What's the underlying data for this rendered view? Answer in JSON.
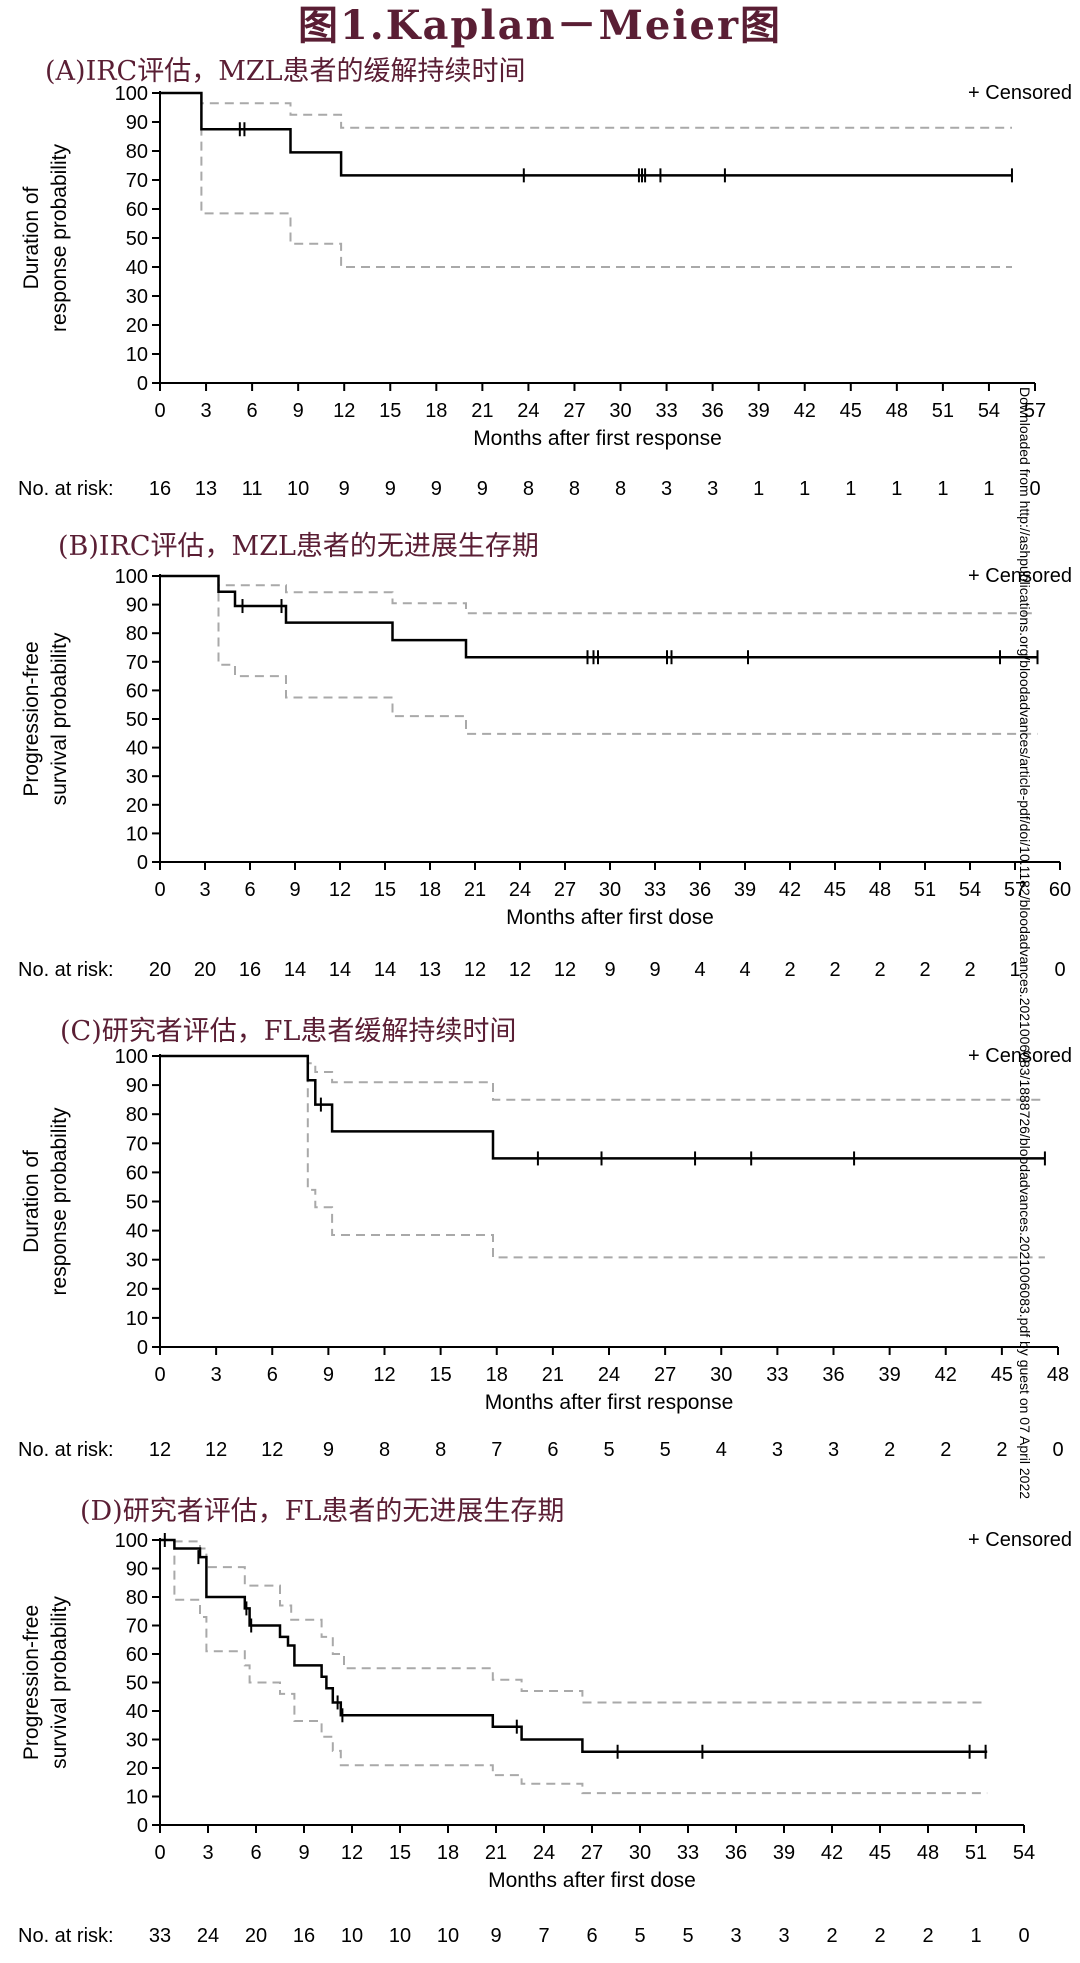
{
  "figure_title": "图1.Kaplan－Meier图",
  "censored_legend": "+ Censored",
  "risk_label": "No. at risk:",
  "watermark": "Downloaded from http://ashpublications.org/bloodadvances/article-pdf/doi/10.1182/bloodadvances.2021006083/1888726/bloodadvances.2021006083.pdf by guest on 07 April 2022",
  "colors": {
    "title": "#5a1e34",
    "km": "#000000",
    "ci": "#a9a9a9"
  },
  "chart_data": [
    {
      "type": "line",
      "title": "(A)IRC评估，MZL患者的缓解持续时间",
      "xlabel": "Months after first response",
      "ylabel": [
        "Duration of",
        "response probability"
      ],
      "xlim": [
        0,
        57
      ],
      "ylim": [
        0,
        100
      ],
      "xticks": [
        0,
        3,
        6,
        9,
        12,
        15,
        18,
        21,
        24,
        27,
        30,
        33,
        36,
        39,
        42,
        45,
        48,
        51,
        54,
        57
      ],
      "yticks": [
        0,
        10,
        20,
        30,
        40,
        50,
        60,
        70,
        80,
        90,
        100
      ],
      "km": [
        [
          0,
          100
        ],
        [
          2.7,
          100
        ],
        [
          2.7,
          87.5
        ],
        [
          8.5,
          87.5
        ],
        [
          8.5,
          79.5
        ],
        [
          11.8,
          79.5
        ],
        [
          11.8,
          71.6
        ],
        [
          55.5,
          71.6
        ]
      ],
      "ci_upper": [
        [
          0,
          100
        ],
        [
          2.7,
          100
        ],
        [
          2.7,
          96.5
        ],
        [
          8.5,
          96.5
        ],
        [
          8.5,
          92.5
        ],
        [
          11.8,
          92.5
        ],
        [
          11.8,
          88
        ],
        [
          55.5,
          88
        ]
      ],
      "ci_lower": [
        [
          0,
          100
        ],
        [
          2.7,
          100
        ],
        [
          2.7,
          58.5
        ],
        [
          8.5,
          58.5
        ],
        [
          8.5,
          48
        ],
        [
          11.8,
          48
        ],
        [
          11.8,
          40
        ],
        [
          55.5,
          40
        ]
      ],
      "censored": [
        [
          5.2,
          87.5
        ],
        [
          5.5,
          87.5
        ],
        [
          23.7,
          71.6
        ],
        [
          31.2,
          71.6
        ],
        [
          31.4,
          71.6
        ],
        [
          31.6,
          71.6
        ],
        [
          32.6,
          71.6
        ],
        [
          36.8,
          71.6
        ],
        [
          55.5,
          71.6
        ]
      ],
      "at_risk": [
        "16",
        "13",
        "11",
        "10",
        "9",
        "9",
        "9",
        "9",
        "8",
        "8",
        "8",
        "3",
        "3",
        "1",
        "1",
        "1",
        "1",
        "1",
        "1",
        "0"
      ]
    },
    {
      "type": "line",
      "title": "(B)IRC评估，MZL患者的无进展生存期",
      "xlabel": "Months after first dose",
      "ylabel": [
        "Progression-free",
        "survival probability"
      ],
      "xlim": [
        0,
        60
      ],
      "ylim": [
        0,
        100
      ],
      "xticks": [
        0,
        3,
        6,
        9,
        12,
        15,
        18,
        21,
        24,
        27,
        30,
        33,
        36,
        39,
        42,
        45,
        48,
        51,
        54,
        57,
        60
      ],
      "yticks": [
        0,
        10,
        20,
        30,
        40,
        50,
        60,
        70,
        80,
        90,
        100
      ],
      "km": [
        [
          0,
          100
        ],
        [
          3.9,
          100
        ],
        [
          3.9,
          94.5
        ],
        [
          5,
          94.5
        ],
        [
          5,
          89.5
        ],
        [
          8.4,
          89.5
        ],
        [
          8.4,
          83.7
        ],
        [
          15.5,
          83.7
        ],
        [
          15.5,
          77.6
        ],
        [
          20.4,
          77.6
        ],
        [
          20.4,
          71.6
        ],
        [
          58.5,
          71.6
        ]
      ],
      "ci_upper": [
        [
          0,
          100
        ],
        [
          3.9,
          100
        ],
        [
          3.9,
          96.8
        ],
        [
          8.4,
          96.8
        ],
        [
          8.4,
          94.3
        ],
        [
          15.5,
          94.3
        ],
        [
          15.5,
          90.5
        ],
        [
          20.4,
          90.5
        ],
        [
          20.4,
          87
        ],
        [
          58.5,
          87
        ]
      ],
      "ci_lower": [
        [
          0,
          100
        ],
        [
          3.9,
          100
        ],
        [
          3.9,
          69
        ],
        [
          5,
          69
        ],
        [
          5,
          65
        ],
        [
          8.4,
          65
        ],
        [
          8.4,
          57.5
        ],
        [
          15.5,
          57.5
        ],
        [
          15.5,
          51
        ],
        [
          20.4,
          51
        ],
        [
          20.4,
          44.8
        ],
        [
          58.5,
          44.8
        ]
      ],
      "censored": [
        [
          5.5,
          89.5
        ],
        [
          8.1,
          89.5
        ],
        [
          28.5,
          71.6
        ],
        [
          28.9,
          71.6
        ],
        [
          29.2,
          71.6
        ],
        [
          33.8,
          71.6
        ],
        [
          34.1,
          71.6
        ],
        [
          39.2,
          71.6
        ],
        [
          56,
          71.6
        ],
        [
          58.5,
          71.6
        ]
      ],
      "at_risk": [
        "20",
        "20",
        "16",
        "14",
        "14",
        "14",
        "13",
        "12",
        "12",
        "12",
        "9",
        "9",
        "4",
        "4",
        "2",
        "2",
        "2",
        "2",
        "2",
        "1",
        "0"
      ]
    },
    {
      "type": "line",
      "title": "(C)研究者评估，FL患者缓解持续时间",
      "xlabel": "Months after first response",
      "ylabel": [
        "Duration of",
        "response probability"
      ],
      "xlim": [
        0,
        48
      ],
      "ylim": [
        0,
        100
      ],
      "xticks": [
        0,
        3,
        6,
        9,
        12,
        15,
        18,
        21,
        24,
        27,
        30,
        33,
        36,
        39,
        42,
        45,
        48
      ],
      "yticks": [
        0,
        10,
        20,
        30,
        40,
        50,
        60,
        70,
        80,
        90,
        100
      ],
      "km": [
        [
          0,
          100
        ],
        [
          7.9,
          100
        ],
        [
          7.9,
          91.7
        ],
        [
          8.3,
          91.7
        ],
        [
          8.3,
          83.3
        ],
        [
          9.2,
          83.3
        ],
        [
          9.2,
          74.1
        ],
        [
          17.8,
          74.1
        ],
        [
          17.8,
          64.8
        ],
        [
          47.3,
          64.8
        ]
      ],
      "ci_upper": [
        [
          0,
          100
        ],
        [
          7.9,
          100
        ],
        [
          7.9,
          97.5
        ],
        [
          8.3,
          97.5
        ],
        [
          8.3,
          94.5
        ],
        [
          9.2,
          94.5
        ],
        [
          9.2,
          91
        ],
        [
          17.8,
          91
        ],
        [
          17.8,
          85
        ],
        [
          47.3,
          85
        ]
      ],
      "ci_lower": [
        [
          0,
          100
        ],
        [
          7.9,
          100
        ],
        [
          7.9,
          54
        ],
        [
          8.3,
          54
        ],
        [
          8.3,
          48
        ],
        [
          9.2,
          48
        ],
        [
          9.2,
          38.5
        ],
        [
          17.8,
          38.5
        ],
        [
          17.8,
          30.8
        ],
        [
          47.3,
          30.8
        ]
      ],
      "censored": [
        [
          8.6,
          83.3
        ],
        [
          20.2,
          64.8
        ],
        [
          23.6,
          64.8
        ],
        [
          28.6,
          64.8
        ],
        [
          31.6,
          64.8
        ],
        [
          37.1,
          64.8
        ],
        [
          47.3,
          64.8
        ]
      ],
      "at_risk": [
        "12",
        "12",
        "12",
        "9",
        "8",
        "8",
        "7",
        "6",
        "5",
        "5",
        "4",
        "3",
        "3",
        "2",
        "2",
        "2",
        "0"
      ]
    },
    {
      "type": "line",
      "title": "(D)研究者评估，FL患者的无进展生存期",
      "xlabel": "Months after first dose",
      "ylabel": [
        "Progression-free",
        "survival probability"
      ],
      "xlim": [
        0,
        54
      ],
      "ylim": [
        0,
        100
      ],
      "xticks": [
        0,
        3,
        6,
        9,
        12,
        15,
        18,
        21,
        24,
        27,
        30,
        33,
        36,
        39,
        42,
        45,
        48,
        51,
        54
      ],
      "yticks": [
        0,
        10,
        20,
        30,
        40,
        50,
        60,
        70,
        80,
        90,
        100
      ],
      "km": [
        [
          0,
          100
        ],
        [
          0.9,
          100
        ],
        [
          0.9,
          97
        ],
        [
          2.5,
          97
        ],
        [
          2.5,
          94
        ],
        [
          2.9,
          94
        ],
        [
          2.9,
          80
        ],
        [
          5.3,
          80
        ],
        [
          5.3,
          76
        ],
        [
          5.6,
          76
        ],
        [
          5.6,
          70
        ],
        [
          7.5,
          70
        ],
        [
          7.5,
          66
        ],
        [
          8,
          66
        ],
        [
          8,
          63
        ],
        [
          8.4,
          63
        ],
        [
          8.4,
          56
        ],
        [
          10.1,
          56
        ],
        [
          10.1,
          52
        ],
        [
          10.4,
          52
        ],
        [
          10.4,
          48
        ],
        [
          10.8,
          48
        ],
        [
          10.8,
          43
        ],
        [
          11.3,
          43
        ],
        [
          11.3,
          38.5
        ],
        [
          20.8,
          38.5
        ],
        [
          20.8,
          34.5
        ],
        [
          22.6,
          34.5
        ],
        [
          22.6,
          30
        ],
        [
          26.4,
          30
        ],
        [
          26.4,
          25.7
        ],
        [
          51.7,
          25.7
        ]
      ],
      "ci_upper": [
        [
          0,
          100
        ],
        [
          0.9,
          100
        ],
        [
          0.9,
          99.5
        ],
        [
          2.5,
          99.5
        ],
        [
          2.5,
          97
        ],
        [
          2.9,
          97
        ],
        [
          2.9,
          90.5
        ],
        [
          5.3,
          90.5
        ],
        [
          5.3,
          84
        ],
        [
          7.5,
          84
        ],
        [
          7.5,
          77
        ],
        [
          8.2,
          77
        ],
        [
          8.2,
          72
        ],
        [
          10.1,
          72
        ],
        [
          10.1,
          66
        ],
        [
          10.8,
          66
        ],
        [
          10.8,
          60
        ],
        [
          11.5,
          60
        ],
        [
          11.5,
          55
        ],
        [
          20.8,
          55
        ],
        [
          20.8,
          51
        ],
        [
          22.6,
          51
        ],
        [
          22.6,
          47
        ],
        [
          26.4,
          47
        ],
        [
          26.4,
          43
        ],
        [
          51.7,
          43
        ]
      ],
      "ci_lower": [
        [
          0,
          100
        ],
        [
          0.9,
          100
        ],
        [
          0.9,
          79
        ],
        [
          2.5,
          79
        ],
        [
          2.5,
          73
        ],
        [
          2.9,
          73
        ],
        [
          2.9,
          61
        ],
        [
          5.3,
          61
        ],
        [
          5.3,
          56
        ],
        [
          5.6,
          56
        ],
        [
          5.6,
          50
        ],
        [
          7.5,
          50
        ],
        [
          7.5,
          46
        ],
        [
          8.4,
          46
        ],
        [
          8.4,
          36.5
        ],
        [
          10.1,
          36.5
        ],
        [
          10.1,
          31
        ],
        [
          10.8,
          31
        ],
        [
          10.8,
          26
        ],
        [
          11.3,
          26
        ],
        [
          11.3,
          21
        ],
        [
          20.8,
          21
        ],
        [
          20.8,
          17.5
        ],
        [
          22.6,
          17.5
        ],
        [
          22.6,
          14.5
        ],
        [
          26.4,
          14.5
        ],
        [
          26.4,
          11.2
        ],
        [
          51.7,
          11.2
        ]
      ],
      "censored": [
        [
          0.3,
          100
        ],
        [
          2.4,
          94
        ],
        [
          5.4,
          76
        ],
        [
          5.7,
          70
        ],
        [
          11.1,
          43
        ],
        [
          11.4,
          38.5
        ],
        [
          22.3,
          34.5
        ],
        [
          28.6,
          25.7
        ],
        [
          33.9,
          25.7
        ],
        [
          50.6,
          25.7
        ],
        [
          51.6,
          25.7
        ]
      ],
      "at_risk": [
        "33",
        "24",
        "20",
        "16",
        "10",
        "10",
        "10",
        "9",
        "7",
        "6",
        "5",
        "5",
        "3",
        "3",
        "2",
        "2",
        "2",
        "1",
        "0"
      ]
    }
  ]
}
